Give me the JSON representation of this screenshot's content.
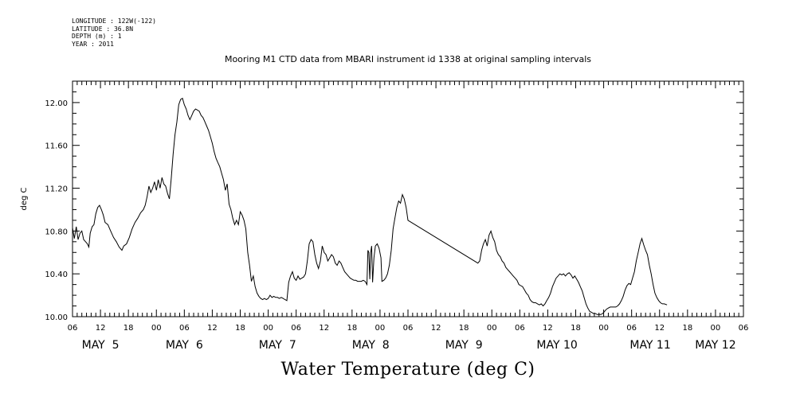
{
  "header": {
    "longitude": "LONGITUDE : 122W(-122)",
    "latitude": "LATITUDE : 36.8N",
    "depth": "DEPTH (m) : 1",
    "year": "YEAR : 2011"
  },
  "chart_data": {
    "type": "line",
    "title": "Mooring M1 CTD data from MBARI instrument id 1338 at original sampling intervals",
    "figure_title": "Water Temperature (deg C)",
    "ylabel": "deg C",
    "ylim": [
      10.0,
      12.2
    ],
    "y_ticks": [
      "10.00",
      "10.40",
      "10.80",
      "11.20",
      "11.60",
      "12.00"
    ],
    "x_unit": "hours since May 5 00:00, 2011",
    "xlim": [
      6,
      150
    ],
    "x_hour_labels": [
      "06",
      "12",
      "18",
      "00",
      "06",
      "12",
      "18",
      "00",
      "06",
      "12",
      "18",
      "00",
      "06",
      "12",
      "18",
      "00",
      "06",
      "12",
      "18",
      "00",
      "06",
      "12",
      "18",
      "00",
      "06",
      "12",
      "18",
      "00",
      "06",
      "12",
      "18",
      "00",
      "06",
      "12",
      "18",
      "00",
      "06",
      "12",
      "18",
      "00",
      "06",
      "12",
      "18",
      "00",
      "06",
      "12",
      "18",
      "00",
      "06",
      "12",
      "18",
      "00",
      "06",
      "12",
      "18",
      "00",
      "06",
      "12",
      "18",
      "00",
      "06",
      "12",
      "18",
      "00",
      "06",
      "12",
      "18",
      "00",
      "06"
    ],
    "x_day_labels": [
      {
        "label": "MAY  5",
        "x": 12
      },
      {
        "label": "MAY  6",
        "x": 30
      },
      {
        "label": "MAY  7",
        "x": 50
      },
      {
        "label": "MAY  8",
        "x": 70
      },
      {
        "label": "MAY  9",
        "x": 90
      },
      {
        "label": "MAY 10",
        "x": 110
      },
      {
        "label": "MAY 11",
        "x": 130
      },
      {
        "label": "MAY 12",
        "x": 144
      }
    ],
    "series": [
      {
        "values": [
          [
            6.0,
            10.83
          ],
          [
            6.4,
            10.73
          ],
          [
            6.8,
            10.84
          ],
          [
            7.2,
            10.72
          ],
          [
            7.6,
            10.78
          ],
          [
            8.0,
            10.8
          ],
          [
            8.4,
            10.72
          ],
          [
            8.8,
            10.7
          ],
          [
            9.2,
            10.68
          ],
          [
            9.5,
            10.65
          ],
          [
            9.8,
            10.78
          ],
          [
            10.2,
            10.84
          ],
          [
            10.6,
            10.86
          ],
          [
            11.0,
            10.96
          ],
          [
            11.4,
            11.02
          ],
          [
            11.8,
            11.04
          ],
          [
            12.2,
            11.0
          ],
          [
            12.6,
            10.95
          ],
          [
            13.0,
            10.88
          ],
          [
            13.6,
            10.86
          ],
          [
            14.2,
            10.8
          ],
          [
            14.8,
            10.74
          ],
          [
            15.4,
            10.7
          ],
          [
            16.0,
            10.65
          ],
          [
            16.6,
            10.62
          ],
          [
            17.0,
            10.66
          ],
          [
            17.6,
            10.68
          ],
          [
            18.2,
            10.74
          ],
          [
            18.8,
            10.82
          ],
          [
            19.4,
            10.88
          ],
          [
            20.0,
            10.92
          ],
          [
            20.6,
            10.97
          ],
          [
            21.2,
            11.0
          ],
          [
            21.6,
            11.04
          ],
          [
            22.0,
            11.12
          ],
          [
            22.4,
            11.22
          ],
          [
            22.8,
            11.16
          ],
          [
            23.2,
            11.2
          ],
          [
            23.6,
            11.26
          ],
          [
            24.0,
            11.18
          ],
          [
            24.4,
            11.28
          ],
          [
            24.8,
            11.2
          ],
          [
            25.2,
            11.3
          ],
          [
            25.6,
            11.24
          ],
          [
            26.0,
            11.22
          ],
          [
            26.4,
            11.15
          ],
          [
            26.8,
            11.1
          ],
          [
            27.2,
            11.3
          ],
          [
            27.6,
            11.52
          ],
          [
            28.0,
            11.7
          ],
          [
            28.4,
            11.82
          ],
          [
            28.8,
            11.98
          ],
          [
            29.2,
            12.03
          ],
          [
            29.6,
            12.04
          ],
          [
            30.0,
            11.98
          ],
          [
            30.4,
            11.94
          ],
          [
            30.8,
            11.88
          ],
          [
            31.2,
            11.84
          ],
          [
            31.6,
            11.88
          ],
          [
            32.0,
            11.92
          ],
          [
            32.4,
            11.94
          ],
          [
            32.8,
            11.93
          ],
          [
            33.2,
            11.92
          ],
          [
            33.6,
            11.88
          ],
          [
            34.0,
            11.86
          ],
          [
            34.4,
            11.82
          ],
          [
            34.8,
            11.78
          ],
          [
            35.2,
            11.74
          ],
          [
            35.6,
            11.68
          ],
          [
            36.0,
            11.62
          ],
          [
            36.4,
            11.54
          ],
          [
            36.8,
            11.48
          ],
          [
            37.2,
            11.44
          ],
          [
            37.6,
            11.4
          ],
          [
            38.0,
            11.34
          ],
          [
            38.4,
            11.28
          ],
          [
            38.8,
            11.18
          ],
          [
            39.2,
            11.24
          ],
          [
            39.6,
            11.05
          ],
          [
            40.0,
            11.0
          ],
          [
            40.4,
            10.92
          ],
          [
            40.8,
            10.86
          ],
          [
            41.2,
            10.9
          ],
          [
            41.6,
            10.86
          ],
          [
            42.0,
            10.98
          ],
          [
            42.4,
            10.95
          ],
          [
            42.8,
            10.9
          ],
          [
            43.2,
            10.82
          ],
          [
            43.6,
            10.6
          ],
          [
            44.0,
            10.48
          ],
          [
            44.4,
            10.33
          ],
          [
            44.8,
            10.38
          ],
          [
            45.2,
            10.28
          ],
          [
            45.6,
            10.22
          ],
          [
            46.0,
            10.19
          ],
          [
            46.4,
            10.17
          ],
          [
            46.8,
            10.16
          ],
          [
            47.2,
            10.17
          ],
          [
            47.6,
            10.16
          ],
          [
            48.0,
            10.17
          ],
          [
            48.4,
            10.2
          ],
          [
            48.8,
            10.18
          ],
          [
            49.2,
            10.19
          ],
          [
            49.6,
            10.18
          ],
          [
            50.0,
            10.18
          ],
          [
            50.4,
            10.17
          ],
          [
            50.8,
            10.18
          ],
          [
            51.2,
            10.17
          ],
          [
            51.6,
            10.16
          ],
          [
            52.0,
            10.15
          ],
          [
            52.4,
            10.32
          ],
          [
            52.8,
            10.38
          ],
          [
            53.2,
            10.42
          ],
          [
            53.6,
            10.36
          ],
          [
            54.0,
            10.34
          ],
          [
            54.4,
            10.38
          ],
          [
            54.8,
            10.35
          ],
          [
            55.2,
            10.36
          ],
          [
            55.6,
            10.37
          ],
          [
            56.0,
            10.4
          ],
          [
            56.4,
            10.52
          ],
          [
            56.8,
            10.68
          ],
          [
            57.2,
            10.72
          ],
          [
            57.6,
            10.7
          ],
          [
            58.0,
            10.58
          ],
          [
            58.4,
            10.5
          ],
          [
            58.8,
            10.45
          ],
          [
            59.2,
            10.52
          ],
          [
            59.6,
            10.66
          ],
          [
            60.0,
            10.6
          ],
          [
            60.4,
            10.58
          ],
          [
            60.8,
            10.52
          ],
          [
            61.2,
            10.55
          ],
          [
            61.6,
            10.58
          ],
          [
            62.0,
            10.56
          ],
          [
            62.4,
            10.5
          ],
          [
            62.8,
            10.48
          ],
          [
            63.2,
            10.52
          ],
          [
            63.6,
            10.5
          ],
          [
            64.0,
            10.46
          ],
          [
            64.4,
            10.42
          ],
          [
            64.8,
            10.4
          ],
          [
            65.2,
            10.38
          ],
          [
            65.6,
            10.36
          ],
          [
            66.0,
            10.35
          ],
          [
            66.4,
            10.34
          ],
          [
            66.8,
            10.34
          ],
          [
            67.2,
            10.33
          ],
          [
            67.6,
            10.33
          ],
          [
            68.0,
            10.33
          ],
          [
            68.4,
            10.34
          ],
          [
            68.8,
            10.33
          ],
          [
            69.2,
            10.3
          ],
          [
            69.4,
            10.62
          ],
          [
            69.6,
            10.6
          ],
          [
            69.8,
            10.35
          ],
          [
            70.0,
            10.6
          ],
          [
            70.2,
            10.66
          ],
          [
            70.4,
            10.32
          ],
          [
            70.7,
            10.55
          ],
          [
            71.0,
            10.66
          ],
          [
            71.4,
            10.68
          ],
          [
            71.8,
            10.64
          ],
          [
            72.2,
            10.55
          ],
          [
            72.4,
            10.33
          ],
          [
            72.8,
            10.34
          ],
          [
            73.2,
            10.36
          ],
          [
            73.6,
            10.4
          ],
          [
            74.0,
            10.48
          ],
          [
            74.4,
            10.62
          ],
          [
            74.8,
            10.82
          ],
          [
            75.2,
            10.92
          ],
          [
            75.6,
            11.02
          ],
          [
            76.0,
            11.08
          ],
          [
            76.4,
            11.06
          ],
          [
            76.8,
            11.14
          ],
          [
            77.2,
            11.1
          ],
          [
            77.6,
            11.02
          ],
          [
            78.0,
            10.9
          ],
          [
            93.0,
            10.5
          ],
          [
            93.4,
            10.52
          ],
          [
            93.8,
            10.62
          ],
          [
            94.2,
            10.68
          ],
          [
            94.6,
            10.72
          ],
          [
            95.0,
            10.66
          ],
          [
            95.4,
            10.76
          ],
          [
            95.8,
            10.8
          ],
          [
            96.2,
            10.74
          ],
          [
            96.6,
            10.7
          ],
          [
            97.0,
            10.62
          ],
          [
            97.4,
            10.58
          ],
          [
            97.8,
            10.56
          ],
          [
            98.2,
            10.52
          ],
          [
            98.6,
            10.5
          ],
          [
            99.0,
            10.46
          ],
          [
            99.4,
            10.44
          ],
          [
            99.8,
            10.42
          ],
          [
            100.2,
            10.4
          ],
          [
            100.6,
            10.38
          ],
          [
            101.0,
            10.36
          ],
          [
            101.4,
            10.34
          ],
          [
            101.8,
            10.3
          ],
          [
            102.2,
            10.29
          ],
          [
            102.6,
            10.28
          ],
          [
            103.0,
            10.25
          ],
          [
            103.4,
            10.22
          ],
          [
            103.8,
            10.2
          ],
          [
            104.2,
            10.16
          ],
          [
            104.6,
            10.14
          ],
          [
            105.0,
            10.13
          ],
          [
            105.4,
            10.13
          ],
          [
            105.8,
            10.12
          ],
          [
            106.2,
            10.11
          ],
          [
            106.6,
            10.12
          ],
          [
            107.0,
            10.1
          ],
          [
            107.4,
            10.12
          ],
          [
            107.8,
            10.15
          ],
          [
            108.2,
            10.18
          ],
          [
            108.6,
            10.22
          ],
          [
            109.0,
            10.28
          ],
          [
            109.4,
            10.32
          ],
          [
            109.8,
            10.36
          ],
          [
            110.2,
            10.38
          ],
          [
            110.6,
            10.4
          ],
          [
            111.0,
            10.39
          ],
          [
            111.4,
            10.4
          ],
          [
            111.8,
            10.38
          ],
          [
            112.2,
            10.4
          ],
          [
            112.6,
            10.41
          ],
          [
            113.0,
            10.39
          ],
          [
            113.4,
            10.36
          ],
          [
            113.8,
            10.38
          ],
          [
            114.2,
            10.35
          ],
          [
            114.6,
            10.32
          ],
          [
            115.0,
            10.28
          ],
          [
            115.4,
            10.24
          ],
          [
            115.8,
            10.18
          ],
          [
            116.2,
            10.12
          ],
          [
            116.6,
            10.08
          ],
          [
            117.0,
            10.05
          ],
          [
            117.4,
            10.04
          ],
          [
            117.8,
            10.03
          ],
          [
            118.2,
            10.03
          ],
          [
            118.6,
            10.02
          ],
          [
            119.0,
            10.02
          ],
          [
            119.4,
            10.02
          ],
          [
            119.8,
            10.03
          ],
          [
            120.2,
            10.05
          ],
          [
            120.6,
            10.07
          ],
          [
            121.0,
            10.08
          ],
          [
            121.4,
            10.09
          ],
          [
            121.8,
            10.09
          ],
          [
            122.2,
            10.09
          ],
          [
            122.6,
            10.09
          ],
          [
            123.0,
            10.1
          ],
          [
            123.4,
            10.12
          ],
          [
            123.8,
            10.15
          ],
          [
            124.2,
            10.19
          ],
          [
            124.6,
            10.25
          ],
          [
            125.0,
            10.29
          ],
          [
            125.4,
            10.31
          ],
          [
            125.8,
            10.3
          ],
          [
            126.2,
            10.36
          ],
          [
            126.6,
            10.42
          ],
          [
            127.0,
            10.52
          ],
          [
            127.4,
            10.6
          ],
          [
            127.8,
            10.68
          ],
          [
            128.2,
            10.73
          ],
          [
            128.6,
            10.67
          ],
          [
            129.0,
            10.62
          ],
          [
            129.4,
            10.58
          ],
          [
            129.8,
            10.48
          ],
          [
            130.2,
            10.4
          ],
          [
            130.6,
            10.3
          ],
          [
            131.0,
            10.22
          ],
          [
            131.4,
            10.18
          ],
          [
            131.8,
            10.15
          ],
          [
            132.2,
            10.13
          ],
          [
            132.6,
            10.12
          ],
          [
            133.0,
            10.12
          ],
          [
            133.6,
            10.11
          ]
        ]
      }
    ]
  }
}
